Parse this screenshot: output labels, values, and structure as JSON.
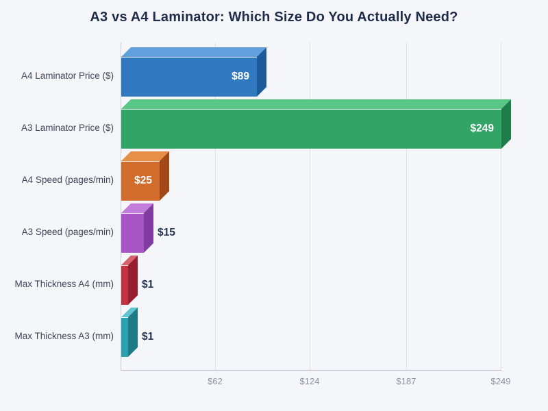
{
  "page": {
    "background": "#f5f6fa"
  },
  "chart_data": {
    "type": "bar",
    "orientation": "horizontal",
    "title": "A3 vs A4 Laminator: Which Size Do You Actually Need?",
    "categories": [
      "A4 Laminator Price ($)",
      "A3 Laminator Price ($)",
      "A4 Speed (pages/min)",
      "A3 Speed (pages/min)",
      "Max Thickness A4 (mm)",
      "Max Thickness A3 (mm)"
    ],
    "values": [
      89,
      249,
      25,
      15,
      1,
      1
    ],
    "value_labels": [
      "$89",
      "$249",
      "$25",
      "$15",
      "$1",
      "$1"
    ],
    "label_placement": [
      "inside",
      "inside",
      "inside",
      "outside",
      "outside",
      "outside"
    ],
    "bar_colors": [
      {
        "front": "#3179bf",
        "top": "#62a0dd",
        "side": "#1d5a9c"
      },
      {
        "front": "#32a466",
        "top": "#58c785",
        "side": "#1d7c49"
      },
      {
        "front": "#d16c2c",
        "top": "#e58f49",
        "side": "#a14a17"
      },
      {
        "front": "#a755c7",
        "top": "#c17dd9",
        "side": "#7f3b9e"
      },
      {
        "front": "#c2343f",
        "top": "#d4636b",
        "side": "#971f2d"
      },
      {
        "front": "#2ba0ae",
        "top": "#5ec4ce",
        "side": "#1e7a87"
      }
    ],
    "xlabel": "",
    "ylabel": "",
    "xlim": [
      0,
      249
    ],
    "xticks": {
      "values": [
        62,
        124,
        187,
        249
      ],
      "labels": [
        "$62",
        "$124",
        "$187",
        "$249"
      ]
    },
    "grid": "vertical",
    "legend_position": "none",
    "style_3d": true,
    "colors": {
      "title": "#1f2c49",
      "category_label": "#3c4657",
      "tick_label": "#8a92a2",
      "value_label_inside": "#ffffff",
      "value_label_outside": "#233150",
      "gridline": "#dde1e9",
      "axis_line": "#b6bcc8",
      "spine": "#c9cdd7",
      "background": "#f5f6fa"
    }
  }
}
